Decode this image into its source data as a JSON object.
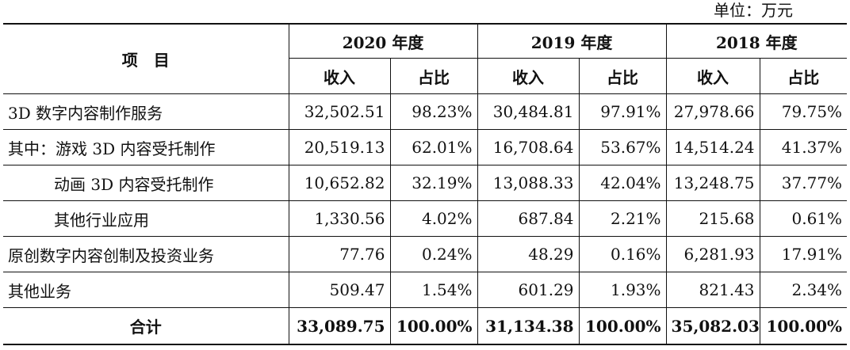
{
  "unit_label": "单位：万元",
  "header": {
    "item": "项　目",
    "years": [
      "2020 年度",
      "2019 年度",
      "2018 年度"
    ],
    "sub": [
      "收入",
      "占比"
    ]
  },
  "rows": [
    {
      "label": "3D 数字内容制作服务",
      "values": [
        "32,502.51",
        "98.23%",
        "30,484.81",
        "97.91%",
        "27,978.66",
        "79.75%"
      ]
    },
    {
      "label": "其中：游戏 3D 内容受托制作",
      "values": [
        "20,519.13",
        "62.01%",
        "16,708.64",
        "53.67%",
        "14,514.24",
        "41.37%"
      ]
    },
    {
      "label": "动画 3D 内容受托制作",
      "values": [
        "10,652.82",
        "32.19%",
        "13,088.33",
        "42.04%",
        "13,248.75",
        "37.77%"
      ]
    },
    {
      "label": "其他行业应用",
      "values": [
        "1,330.56",
        "4.02%",
        "687.84",
        "2.21%",
        "215.68",
        "0.61%"
      ]
    },
    {
      "label": "原创数字内容创制及投资业务",
      "values": [
        "77.76",
        "0.24%",
        "48.29",
        "0.16%",
        "6,281.93",
        "17.91%"
      ]
    },
    {
      "label": "其他业务",
      "values": [
        "509.47",
        "1.54%",
        "601.29",
        "1.93%",
        "821.43",
        "2.34%"
      ]
    }
  ],
  "total": {
    "label": "合计",
    "values": [
      "33,089.75",
      "100.00%",
      "31,134.38",
      "100.00%",
      "35,082.03",
      "100.00%"
    ]
  }
}
